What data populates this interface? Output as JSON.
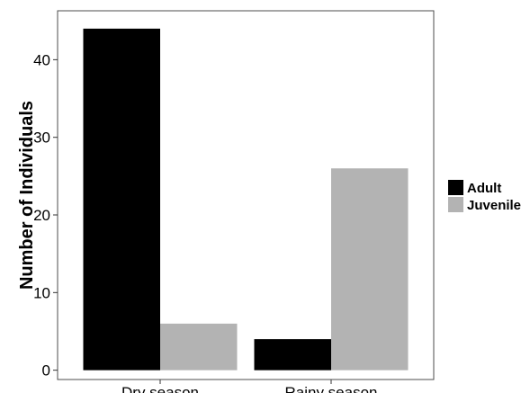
{
  "chart_data": {
    "type": "bar",
    "categories": [
      "Dry season",
      "Rainy season"
    ],
    "series": [
      {
        "name": "Adult",
        "values": [
          44,
          4
        ],
        "color": "#000000"
      },
      {
        "name": "Juvenile",
        "values": [
          6,
          26
        ],
        "color": "#b3b3b3"
      }
    ],
    "xlabel": "",
    "ylabel": "Number of Individuals",
    "ylim": [
      -1.2,
      46.3
    ],
    "yticks": [
      0,
      10,
      20,
      30,
      40
    ],
    "grid": false,
    "legend_position": "right"
  }
}
